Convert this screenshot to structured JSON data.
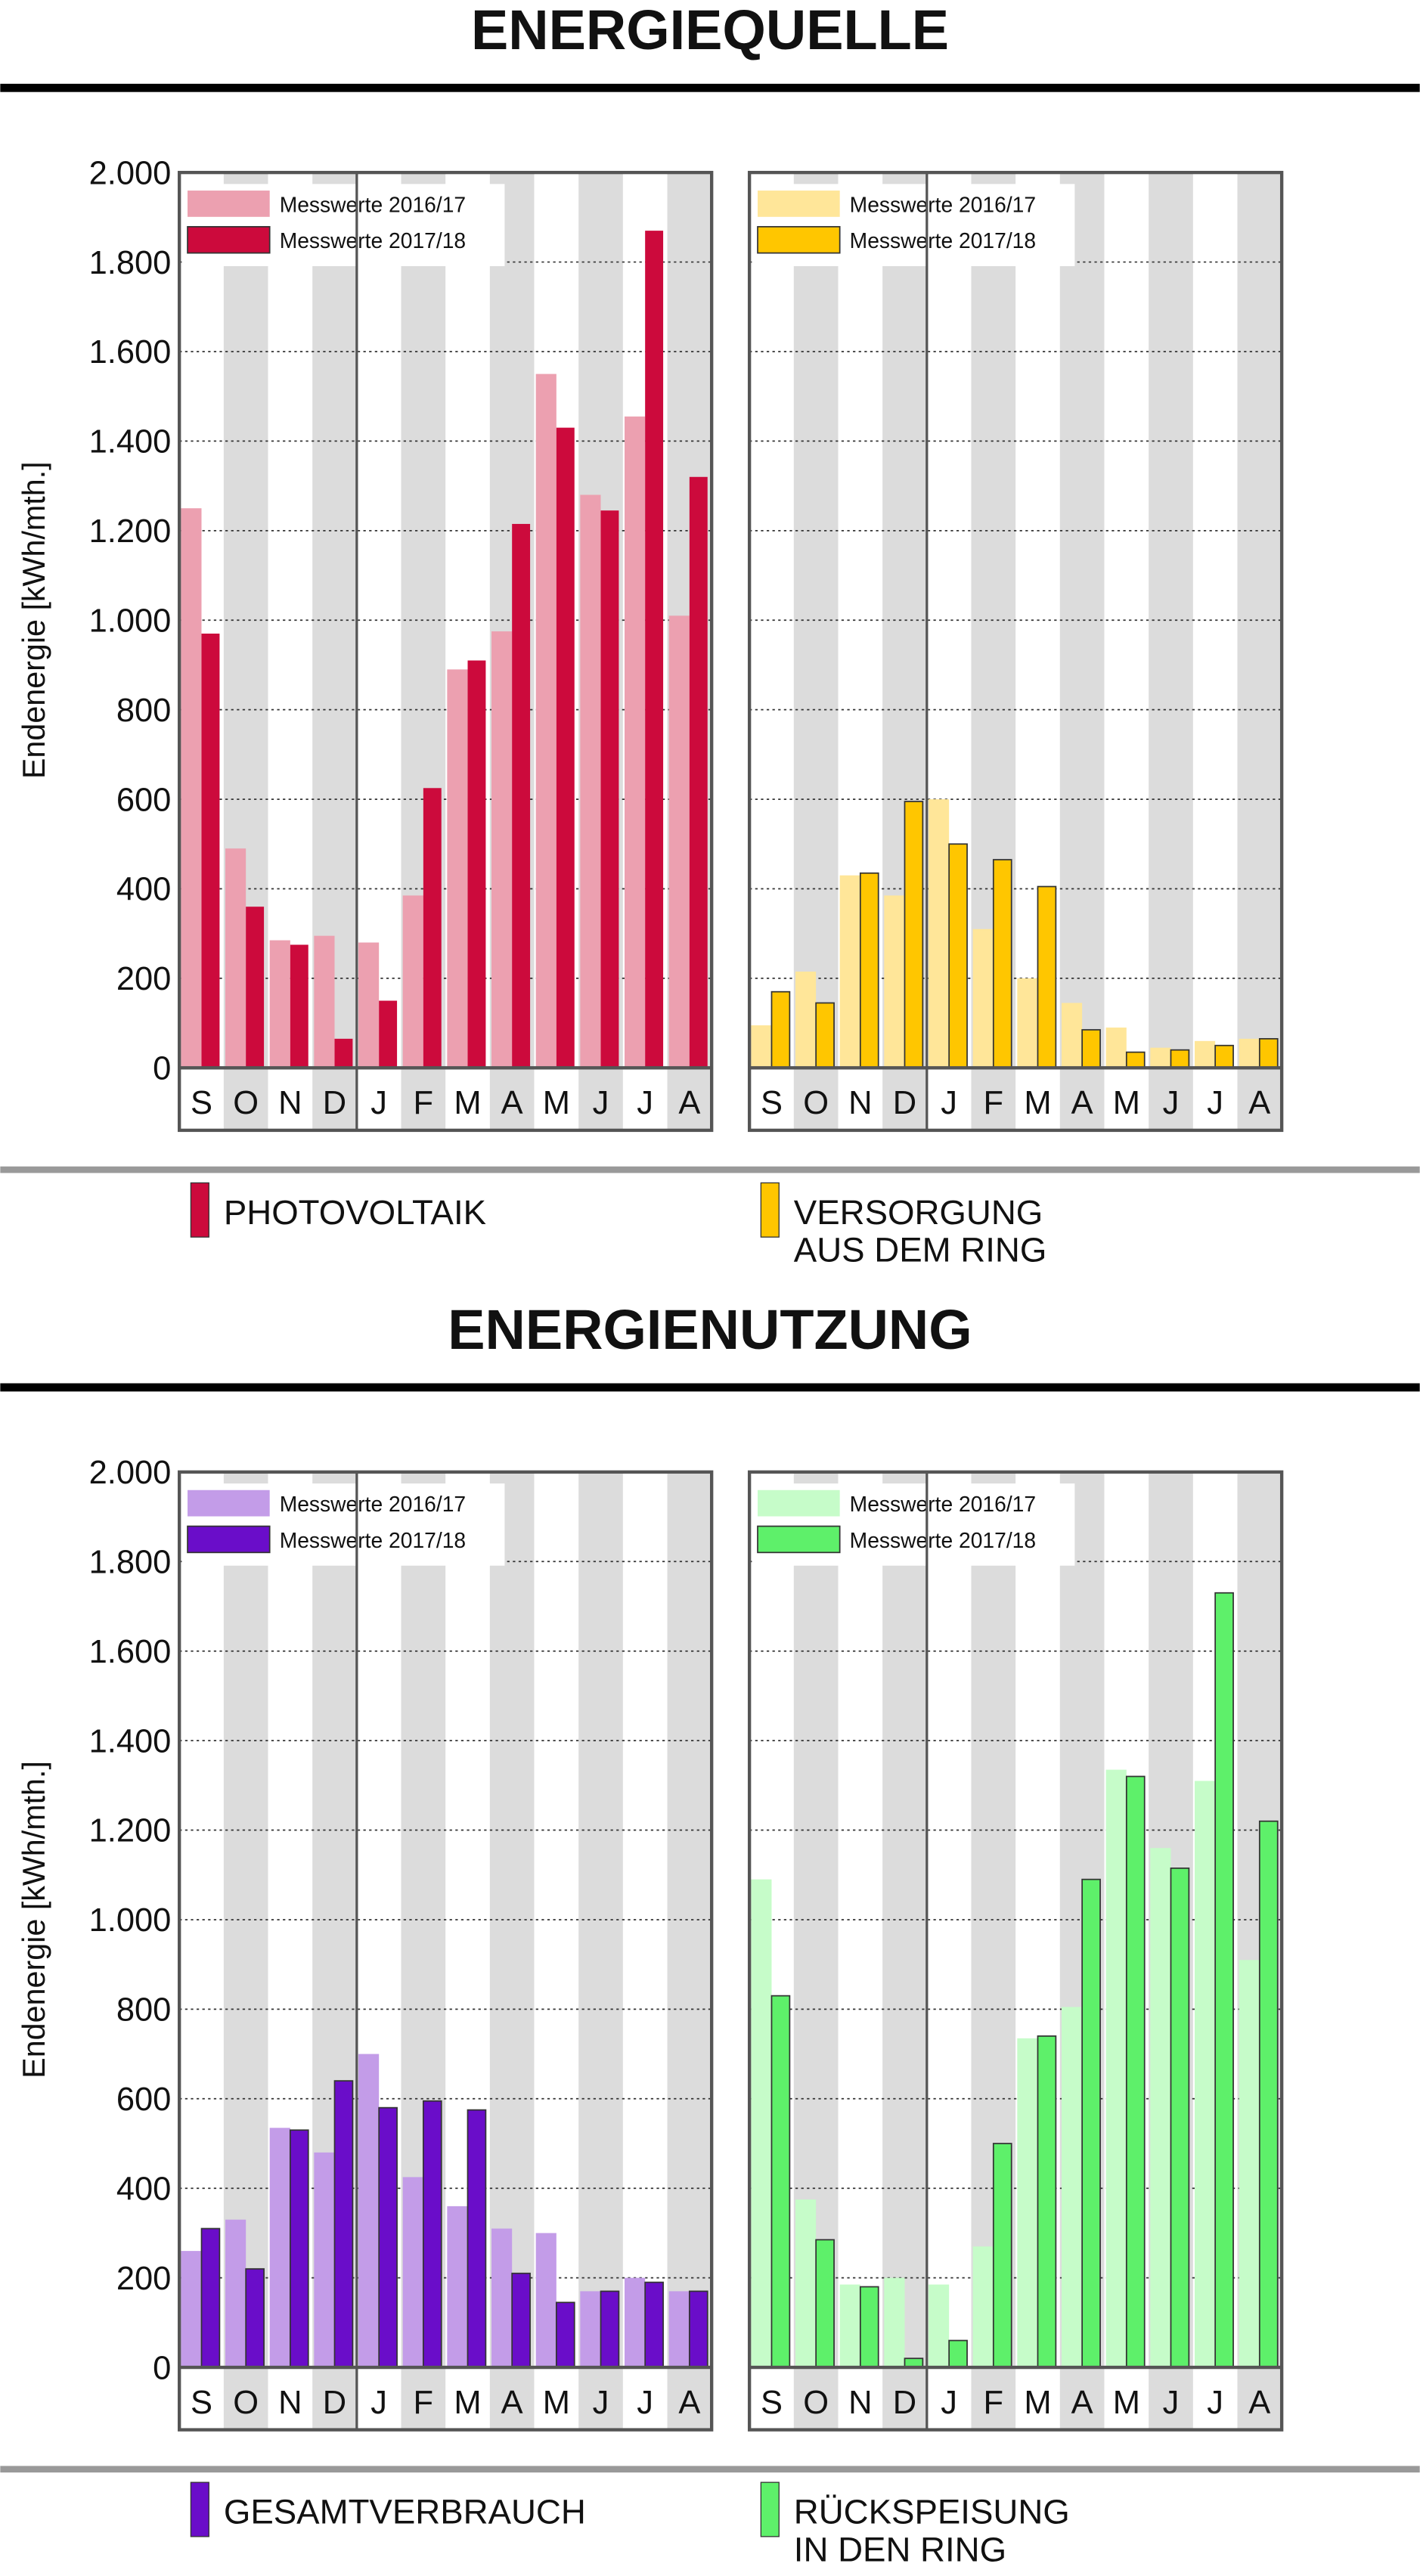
{
  "sections": [
    {
      "title": "ENERGIEQUELLE"
    },
    {
      "title": "ENERGIENUTZUNG"
    }
  ],
  "chart_data": [
    {
      "type": "bar",
      "section": 0,
      "title": [
        "PHOTOVOLTAIK"
      ],
      "ylabel": "Endenergie [kWh/mth.]",
      "categories": [
        "S",
        "O",
        "N",
        "D",
        "J",
        "F",
        "M",
        "A",
        "M",
        "J",
        "J",
        "A"
      ],
      "ylim": [
        0,
        2000
      ],
      "grid": true,
      "tick_labels": true,
      "yticks": [
        0,
        200,
        400,
        600,
        800,
        {
          "value": 1000,
          "label": "1.000"
        },
        {
          "value": 1200,
          "label": "1.200"
        },
        {
          "value": 1400,
          "label": "1.400"
        },
        {
          "value": 1600,
          "label": "1.600"
        },
        {
          "value": 1800,
          "label": "1.800"
        },
        {
          "value": 2000,
          "label": "2.000"
        }
      ],
      "series": [
        {
          "name": "Messwerte 2016/17",
          "color": "#eca0b0",
          "values": [
            1250,
            490,
            285,
            295,
            280,
            385,
            890,
            975,
            1550,
            1280,
            1455,
            1010
          ]
        },
        {
          "name": "Messwerte 2017/18",
          "color": "#cc0a3c",
          "values": [
            970,
            360,
            275,
            65,
            150,
            625,
            910,
            1215,
            1430,
            1245,
            1870,
            1320
          ]
        }
      ]
    },
    {
      "type": "bar",
      "section": 0,
      "title": [
        "VERSORGUNG",
        "AUS DEM RING"
      ],
      "categories": [
        "S",
        "O",
        "N",
        "D",
        "J",
        "F",
        "M",
        "A",
        "M",
        "J",
        "J",
        "A"
      ],
      "ylim": [
        0,
        2000
      ],
      "grid": true,
      "tick_labels": false,
      "yticks": [
        0,
        200,
        400,
        600,
        800,
        1000,
        1200,
        1400,
        1600,
        1800,
        2000
      ],
      "series": [
        {
          "name": "Messwerte 2016/17",
          "color": "#ffe699",
          "values": [
            95,
            215,
            430,
            385,
            600,
            310,
            200,
            145,
            90,
            45,
            60,
            65
          ]
        },
        {
          "name": "Messwerte 2017/18",
          "color": "#ffc600",
          "values": [
            170,
            145,
            435,
            595,
            500,
            465,
            405,
            85,
            35,
            40,
            50,
            65
          ]
        }
      ]
    },
    {
      "type": "bar",
      "section": 1,
      "title": [
        "GESAMTVERBRAUCH"
      ],
      "ylabel": "Endenergie [kWh/mth.]",
      "categories": [
        "S",
        "O",
        "N",
        "D",
        "J",
        "F",
        "M",
        "A",
        "M",
        "J",
        "J",
        "A"
      ],
      "ylim": [
        0,
        2000
      ],
      "grid": true,
      "tick_labels": true,
      "yticks": [
        0,
        200,
        400,
        600,
        800,
        {
          "value": 1000,
          "label": "1.000"
        },
        {
          "value": 1200,
          "label": "1.200"
        },
        {
          "value": 1400,
          "label": "1.400"
        },
        {
          "value": 1600,
          "label": "1.600"
        },
        {
          "value": 1800,
          "label": "1.800"
        },
        {
          "value": 2000,
          "label": "2.000"
        }
      ],
      "series": [
        {
          "name": "Messwerte 2016/17",
          "color": "#c39ce8",
          "values": [
            260,
            330,
            535,
            480,
            700,
            425,
            360,
            310,
            300,
            170,
            200,
            170
          ]
        },
        {
          "name": "Messwerte 2017/18",
          "color": "#6a0dc9",
          "values": [
            310,
            220,
            530,
            640,
            580,
            595,
            575,
            210,
            145,
            170,
            190,
            170
          ]
        }
      ]
    },
    {
      "type": "bar",
      "section": 1,
      "title": [
        "RÜCKSPEISUNG",
        "IN DEN RING"
      ],
      "categories": [
        "S",
        "O",
        "N",
        "D",
        "J",
        "F",
        "M",
        "A",
        "M",
        "J",
        "J",
        "A"
      ],
      "ylim": [
        0,
        2000
      ],
      "grid": true,
      "tick_labels": false,
      "yticks": [
        0,
        200,
        400,
        600,
        800,
        1000,
        1200,
        1400,
        1600,
        1800,
        2000
      ],
      "series": [
        {
          "name": "Messwerte 2016/17",
          "color": "#c6fcc9",
          "values": [
            1090,
            375,
            185,
            200,
            185,
            270,
            735,
            805,
            1335,
            1160,
            1310,
            910
          ]
        },
        {
          "name": "Messwerte 2017/18",
          "color": "#5ef06a",
          "values": [
            830,
            285,
            180,
            20,
            60,
            500,
            740,
            1090,
            1320,
            1115,
            1730,
            1220
          ]
        }
      ]
    }
  ]
}
